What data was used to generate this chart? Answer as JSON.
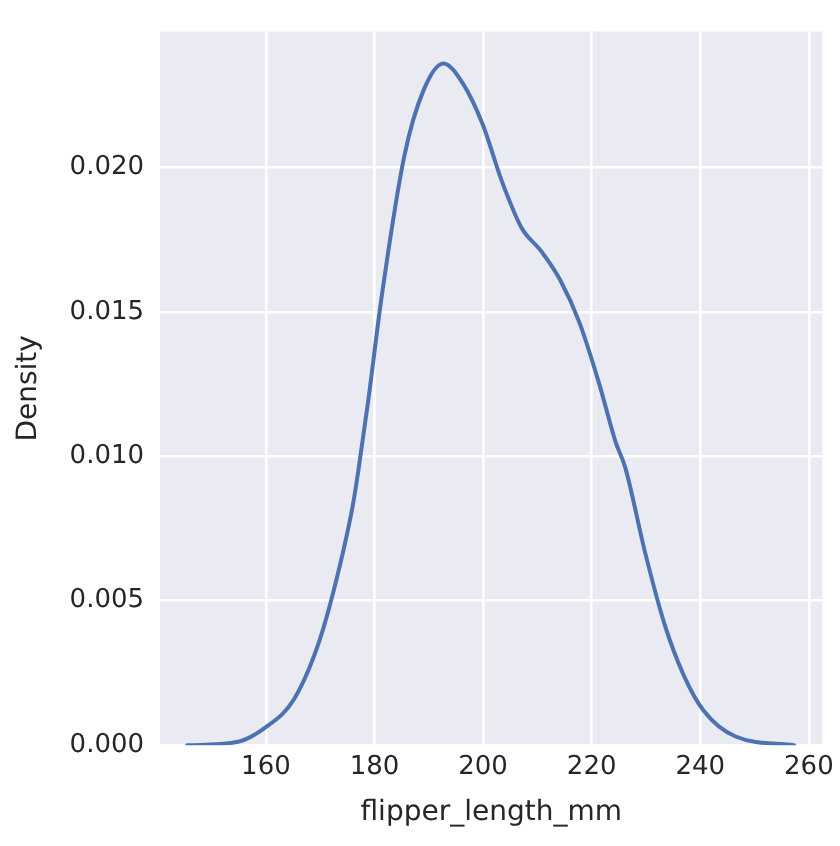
{
  "chart_data": {
    "type": "line",
    "xlabel": "flipper_length_mm",
    "ylabel": "Density",
    "x": [
      145.5,
      154.4,
      159.8,
      165.2,
      170.0,
      173.6,
      176.0,
      177.1,
      178.9,
      181.3,
      185.5,
      189.1,
      192.7,
      196.3,
      199.9,
      203.5,
      207.1,
      210.7,
      214.2,
      217.8,
      221.4,
      224.4,
      226.2,
      229.8,
      233.4,
      237.0,
      240.6,
      246.5,
      257.3
    ],
    "series": [
      {
        "color": "#4c72b0",
        "values": [
          0,
          0.0001,
          0.0006,
          0.0016,
          0.0037,
          0.0062,
          0.0083,
          0.0096,
          0.012,
          0.0155,
          0.0204,
          0.0227,
          0.0236,
          0.0229,
          0.0215,
          0.0195,
          0.0179,
          0.0171,
          0.0161,
          0.0146,
          0.0125,
          0.0105,
          0.0096,
          0.0067,
          0.0042,
          0.0024,
          0.0012,
          0.0003,
          0
        ]
      }
    ],
    "xlim": [
      140.5,
      262.5
    ],
    "xticks": [
      160,
      180,
      200,
      220,
      240,
      260
    ],
    "ylim": [
      0,
      0.0247
    ],
    "yticks": [
      {
        "value": 0,
        "label": "0.000"
      },
      {
        "value": 0.005,
        "label": "0.005"
      },
      {
        "value": 0.01,
        "label": "0.010"
      },
      {
        "value": 0.015,
        "label": "0.015"
      },
      {
        "value": 0.02,
        "label": "0.020"
      }
    ],
    "grid": true,
    "legend": false,
    "marker": "none",
    "line_style": "solid"
  }
}
